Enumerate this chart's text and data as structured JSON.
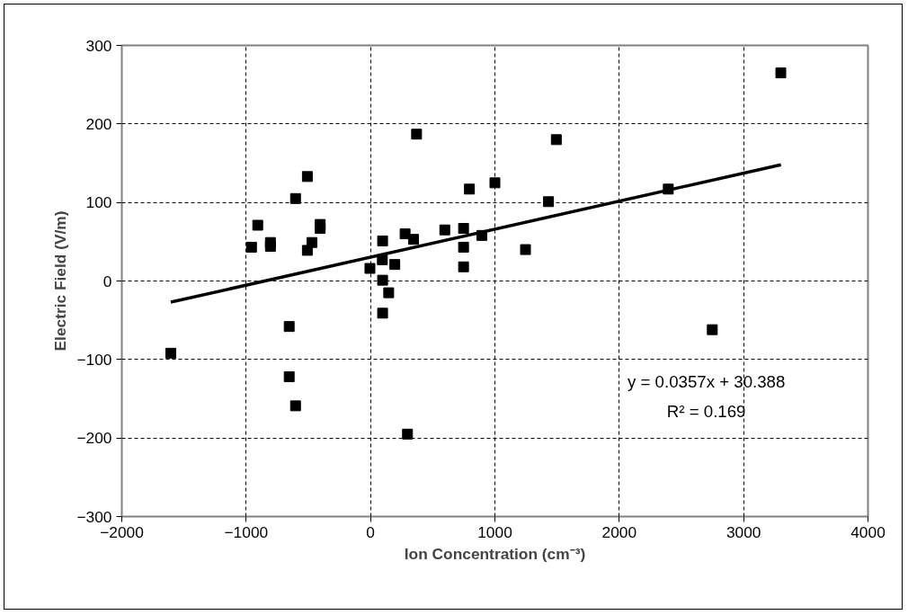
{
  "chart_data": {
    "type": "scatter",
    "xlabel": "Ion Concentration (cm⁻³)",
    "ylabel": "Electric Field (V/m)",
    "xlim": [
      -2000,
      4000
    ],
    "ylim": [
      -300,
      300
    ],
    "xticks": [
      -2000,
      -1000,
      0,
      1000,
      2000,
      3000,
      4000
    ],
    "yticks": [
      -300,
      -200,
      -100,
      0,
      100,
      200,
      300
    ],
    "grid": true,
    "line_style": "dashed",
    "annotations": [
      "y = 0.0357x + 30.388",
      "R² = 0.169"
    ],
    "series": [
      {
        "marker": "square",
        "color": "#000000",
        "x": [
          -1606,
          -957,
          -907,
          -805,
          -805,
          -603,
          -508,
          -471,
          -508,
          -405,
          -405,
          -654,
          -654,
          -603,
          -5,
          97,
          95,
          97,
          97,
          146,
          195,
          278,
          297,
          346,
          370,
          597,
          748,
          748,
          748,
          795,
          895,
          1000,
          1246,
          1431,
          1494,
          2394,
          2748,
          3299
        ],
        "values": [
          -92,
          43,
          71,
          49,
          44,
          105,
          133,
          49,
          39,
          72,
          67,
          -58,
          -122,
          -159,
          16,
          51,
          27,
          1,
          -41,
          -15,
          21,
          60,
          -195,
          53,
          187,
          65,
          67,
          43,
          18,
          117,
          58,
          125,
          40,
          101,
          180,
          117,
          -62,
          265
        ]
      },
      {
        "type": "line",
        "marker": "none",
        "line_style": "solid",
        "color": "#000000",
        "x": [
          -1606,
          3300
        ],
        "values": [
          -27,
          148
        ]
      }
    ]
  }
}
